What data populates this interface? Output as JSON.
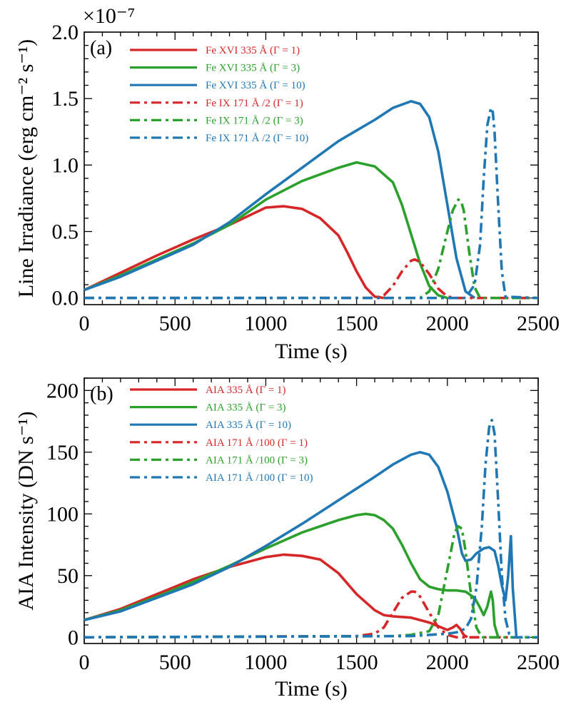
{
  "chart_data": [
    {
      "type": "line",
      "panel_label": "(a)",
      "title": "",
      "xlabel": "Time (s)",
      "ylabel": "Line Irradiance (erg cm⁻² s⁻¹)",
      "exponent_label": "×10⁻⁷",
      "xlim": [
        0,
        2500
      ],
      "ylim": [
        -0.05,
        2.0
      ],
      "xticks": [
        0,
        500,
        1000,
        1500,
        2000,
        2500
      ],
      "xtick_labels": [
        "0",
        "500",
        "1000",
        "1500",
        "2000",
        "2500"
      ],
      "yticks": [
        0.0,
        0.5,
        1.0,
        1.5,
        2.0
      ],
      "ytick_labels": [
        "0.0",
        "0.5",
        "1.0",
        "1.5",
        "2.0"
      ],
      "legend_position": "top-left",
      "series": [
        {
          "name": "Fe XVI 335 Å  (Γ = 1)",
          "color": "#d62728",
          "style": "solid",
          "x": [
            0,
            200,
            400,
            600,
            800,
            1000,
            1100,
            1200,
            1300,
            1400,
            1450,
            1500,
            1550,
            1600,
            1650
          ],
          "y": [
            0.06,
            0.19,
            0.32,
            0.44,
            0.55,
            0.68,
            0.69,
            0.67,
            0.6,
            0.47,
            0.34,
            0.2,
            0.08,
            0.01,
            0.0
          ]
        },
        {
          "name": "Fe XVI 335 Å  (Γ = 3)",
          "color": "#2ca02c",
          "style": "solid",
          "x": [
            0,
            200,
            400,
            600,
            800,
            1000,
            1200,
            1400,
            1500,
            1600,
            1700,
            1750,
            1800,
            1850,
            1900,
            1950,
            2000
          ],
          "y": [
            0.06,
            0.17,
            0.29,
            0.41,
            0.55,
            0.74,
            0.88,
            0.98,
            1.02,
            0.99,
            0.87,
            0.7,
            0.48,
            0.26,
            0.09,
            0.02,
            0.0
          ]
        },
        {
          "name": "Fe XVI 335 Å  (Γ = 10)",
          "color": "#1f77b4",
          "style": "solid",
          "x": [
            0,
            200,
            400,
            600,
            800,
            1000,
            1200,
            1400,
            1600,
            1700,
            1800,
            1850,
            1900,
            1950,
            2000,
            2050,
            2100,
            2150
          ],
          "y": [
            0.06,
            0.16,
            0.28,
            0.4,
            0.57,
            0.78,
            0.98,
            1.18,
            1.34,
            1.43,
            1.48,
            1.46,
            1.36,
            1.1,
            0.7,
            0.3,
            0.05,
            0.0
          ]
        },
        {
          "name": "Fe IX 171 Å /2  (Γ = 1)",
          "color": "#d62728",
          "style": "dashdot",
          "x": [
            0,
            1600,
            1650,
            1700,
            1750,
            1800,
            1820,
            1850,
            1900,
            1950,
            2000,
            2050,
            2500
          ],
          "y": [
            0.0,
            0.0,
            0.02,
            0.09,
            0.2,
            0.28,
            0.29,
            0.27,
            0.18,
            0.07,
            0.01,
            0.0,
            0.0
          ]
        },
        {
          "name": "Fe IX 171 Å /2  (Γ = 3)",
          "color": "#2ca02c",
          "style": "dashdot",
          "x": [
            0,
            1850,
            1900,
            1950,
            2000,
            2030,
            2060,
            2075,
            2090,
            2120,
            2150,
            2180,
            2500
          ],
          "y": [
            0.0,
            0.0,
            0.05,
            0.22,
            0.5,
            0.66,
            0.74,
            0.73,
            0.66,
            0.35,
            0.08,
            0.0,
            0.0
          ]
        },
        {
          "name": "Fe IX 171 Å /2  (Γ = 10)",
          "color": "#1f77b4",
          "style": "dashdot",
          "x": [
            0,
            2100,
            2150,
            2180,
            2200,
            2220,
            2240,
            2250,
            2260,
            2280,
            2300,
            2320,
            2500
          ],
          "y": [
            0.0,
            0.0,
            0.1,
            0.4,
            0.9,
            1.3,
            1.43,
            1.4,
            1.25,
            0.7,
            0.2,
            0.01,
            0.0
          ]
        }
      ]
    },
    {
      "type": "line",
      "panel_label": "(b)",
      "title": "",
      "xlabel": "Time (s)",
      "ylabel": "AIA Intensity (DN s⁻¹)",
      "xlim": [
        0,
        2500
      ],
      "ylim": [
        -5,
        210
      ],
      "xticks": [
        0,
        500,
        1000,
        1500,
        2000,
        2500
      ],
      "xtick_labels": [
        "0",
        "500",
        "1000",
        "1500",
        "2000",
        "2500"
      ],
      "yticks": [
        0,
        50,
        100,
        150,
        200
      ],
      "ytick_labels": [
        "0",
        "50",
        "100",
        "150",
        "200"
      ],
      "legend_position": "top-left",
      "series": [
        {
          "name": "AIA 335 Å  (Γ = 1)",
          "color": "#d62728",
          "style": "solid",
          "x": [
            0,
            200,
            400,
            600,
            800,
            1000,
            1100,
            1200,
            1300,
            1400,
            1500,
            1600,
            1650,
            1700,
            1800,
            1900,
            2000,
            2030,
            2050,
            2070,
            2090,
            2110
          ],
          "y": [
            14,
            23,
            35,
            47,
            57,
            65,
            67,
            66,
            63,
            52,
            35,
            22,
            18,
            17,
            16,
            12,
            6,
            8,
            10,
            7,
            2,
            0
          ]
        },
        {
          "name": "AIA 335 Å  (Γ = 3)",
          "color": "#2ca02c",
          "style": "solid",
          "x": [
            0,
            200,
            400,
            600,
            800,
            1000,
            1200,
            1400,
            1500,
            1550,
            1600,
            1650,
            1700,
            1750,
            1800,
            1850,
            1900,
            1950,
            2000,
            2050,
            2100,
            2150,
            2180,
            2200,
            2220,
            2240,
            2250,
            2260,
            2280
          ],
          "y": [
            14,
            22,
            33,
            45,
            58,
            72,
            85,
            95,
            99,
            100,
            99,
            95,
            88,
            75,
            60,
            47,
            41,
            39,
            38,
            38,
            37,
            32,
            24,
            18,
            25,
            37,
            30,
            10,
            0
          ]
        },
        {
          "name": "AIA 335 Å  (Γ = 10)",
          "color": "#1f77b4",
          "style": "solid",
          "x": [
            0,
            200,
            400,
            600,
            800,
            1000,
            1200,
            1400,
            1600,
            1700,
            1800,
            1850,
            1900,
            1950,
            2000,
            2050,
            2080,
            2100,
            2130,
            2160,
            2200,
            2230,
            2260,
            2280,
            2300,
            2320,
            2335,
            2350,
            2360,
            2380
          ],
          "y": [
            14,
            21,
            32,
            43,
            57,
            74,
            92,
            111,
            130,
            140,
            148,
            150,
            148,
            138,
            118,
            90,
            68,
            62,
            63,
            68,
            72,
            73,
            70,
            58,
            42,
            30,
            50,
            82,
            40,
            0
          ]
        },
        {
          "name": "AIA 171 Å /100  (Γ = 1)",
          "color": "#d62728",
          "style": "dashdot",
          "x": [
            0,
            1500,
            1600,
            1650,
            1700,
            1750,
            1800,
            1820,
            1850,
            1900,
            1950,
            2000,
            2050,
            2500
          ],
          "y": [
            0,
            1,
            3,
            8,
            20,
            32,
            37,
            37,
            33,
            20,
            8,
            2,
            0,
            0
          ]
        },
        {
          "name": "AIA 171 Å /100  (Γ = 3)",
          "color": "#2ca02c",
          "style": "dashdot",
          "x": [
            0,
            1700,
            1800,
            1900,
            1950,
            2000,
            2040,
            2060,
            2080,
            2100,
            2130,
            2160,
            2190,
            2500
          ],
          "y": [
            0,
            1,
            2,
            5,
            18,
            55,
            85,
            90,
            88,
            70,
            35,
            8,
            0,
            0
          ]
        },
        {
          "name": "AIA 171 Å /100  (Γ = 10)",
          "color": "#1f77b4",
          "style": "dashdot",
          "x": [
            0,
            1800,
            1900,
            2000,
            2050,
            2100,
            2130,
            2160,
            2190,
            2210,
            2230,
            2245,
            2260,
            2280,
            2300,
            2320,
            2340,
            2360,
            2500
          ],
          "y": [
            0,
            1,
            2,
            3,
            4,
            7,
            15,
            40,
            90,
            140,
            170,
            176,
            165,
            110,
            50,
            15,
            3,
            0,
            0
          ]
        }
      ]
    }
  ]
}
